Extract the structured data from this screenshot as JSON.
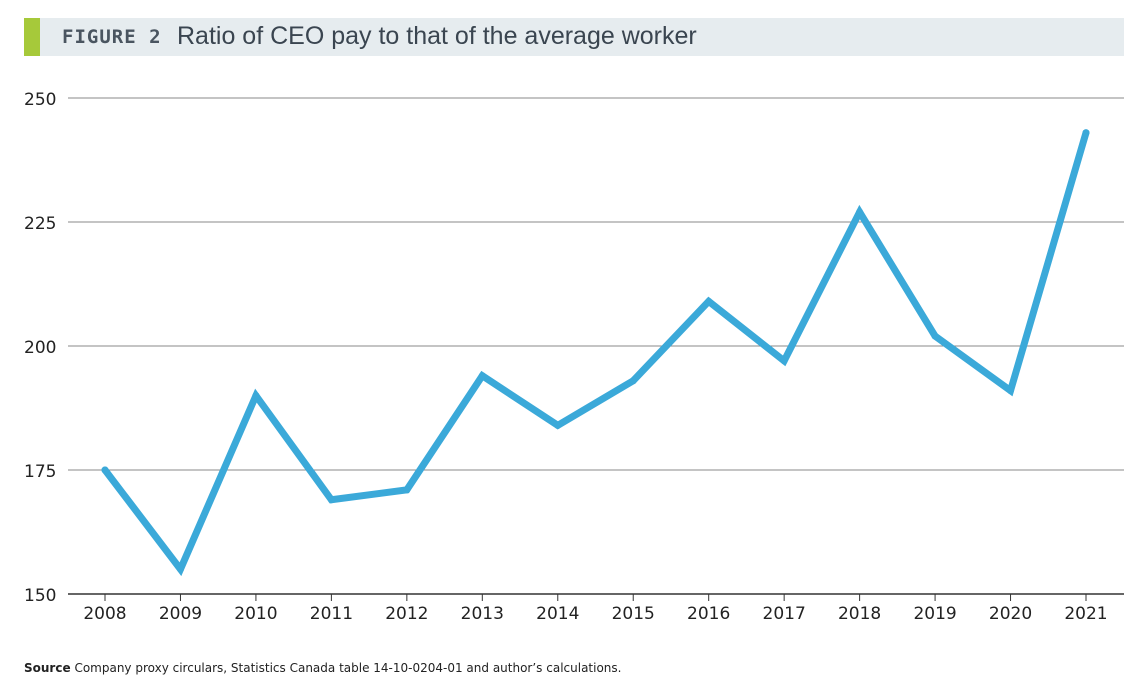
{
  "header": {
    "figure_label": "FIGURE 2",
    "title": "Ratio of CEO pay to that of the average worker"
  },
  "source": {
    "label": "Source",
    "text": "Company proxy circulars, Statistics Canada table 14-10-0204-01 and author’s calculations."
  },
  "colors": {
    "line": "#3ba9d9",
    "accent": "#a6c93a",
    "header_bg": "#e6ecef",
    "grid": "#888888"
  },
  "chart_data": {
    "type": "line",
    "title": "Ratio of CEO pay to that of the average worker",
    "xlabel": "",
    "ylabel": "",
    "categories": [
      "2008",
      "2009",
      "2010",
      "2011",
      "2012",
      "2013",
      "2014",
      "2015",
      "2016",
      "2017",
      "2018",
      "2019",
      "2020",
      "2021"
    ],
    "values": [
      175,
      155,
      190,
      169,
      171,
      194,
      184,
      193,
      209,
      197,
      227,
      202,
      191,
      243
    ],
    "ylim": [
      150,
      250
    ],
    "yticks": [
      150,
      175,
      200,
      225,
      250
    ],
    "grid": true,
    "legend": "none"
  }
}
